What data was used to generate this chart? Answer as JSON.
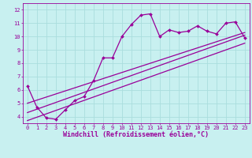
{
  "title": "",
  "xlabel": "Windchill (Refroidissement éolien,°C)",
  "ylabel": "",
  "bg_color": "#c8f0f0",
  "line_color": "#990099",
  "grid_color": "#aadddd",
  "xlim": [
    -0.5,
    23.5
  ],
  "ylim": [
    3.5,
    12.5
  ],
  "xticks": [
    0,
    1,
    2,
    3,
    4,
    5,
    6,
    7,
    8,
    9,
    10,
    11,
    12,
    13,
    14,
    15,
    16,
    17,
    18,
    19,
    20,
    21,
    22,
    23
  ],
  "yticks": [
    4,
    5,
    6,
    7,
    8,
    9,
    10,
    11,
    12
  ],
  "data_x": [
    0,
    1,
    2,
    3,
    4,
    5,
    6,
    7,
    8,
    9,
    10,
    11,
    12,
    13,
    14,
    15,
    16,
    17,
    18,
    19,
    20,
    21,
    22,
    23
  ],
  "data_y": [
    6.3,
    4.7,
    3.9,
    3.8,
    4.5,
    5.2,
    5.5,
    6.7,
    8.4,
    8.4,
    10.0,
    10.9,
    11.6,
    11.7,
    10.0,
    10.5,
    10.3,
    10.4,
    10.8,
    10.4,
    10.2,
    11.0,
    11.1,
    9.9
  ],
  "trend1_x": [
    0,
    23
  ],
  "trend1_y": [
    3.7,
    9.5
  ],
  "trend2_x": [
    0,
    23
  ],
  "trend2_y": [
    4.3,
    10.1
  ],
  "trend3_x": [
    0,
    23
  ],
  "trend3_y": [
    5.0,
    10.3
  ],
  "marker_size": 2.0,
  "linewidth": 0.9,
  "tick_fontsize": 5.0,
  "xlabel_fontsize": 6.0
}
